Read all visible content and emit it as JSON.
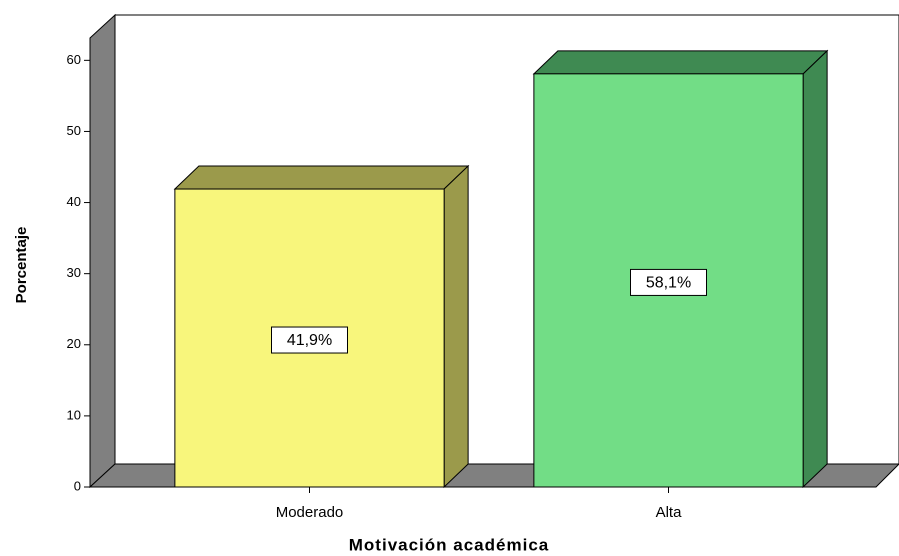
{
  "chart_data": {
    "type": "bar3d",
    "x_label": "Motivación académica",
    "y_label": "Porcentaje",
    "categories": [
      "Moderado",
      "Alta"
    ],
    "values": [
      41.9,
      58.1
    ],
    "value_labels": [
      "41,9%",
      "58,1%"
    ],
    "colors": [
      "#f8f67c",
      "#72dd86"
    ],
    "side_colors": [
      "#9b9a4b",
      "#3f8a52"
    ],
    "ylim": [
      0,
      63
    ],
    "yticks": [
      0,
      10,
      20,
      30,
      40,
      50,
      60
    ],
    "grid": false
  }
}
